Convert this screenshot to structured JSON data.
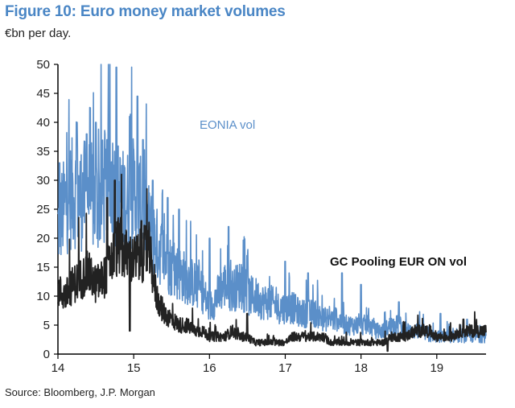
{
  "header": {
    "title": "Figure 10: Euro money market volumes",
    "subtitle": "€bn per day."
  },
  "footer": {
    "source": "Source: Bloomberg, J.P. Morgan"
  },
  "chart_data": {
    "type": "line",
    "title": "Figure 10: Euro money market volumes",
    "ylabel": "€bn per day.",
    "xlabel": "",
    "xlim": [
      14.0,
      19.65
    ],
    "ylim": [
      0,
      50
    ],
    "x_ticks": [
      "14",
      "15",
      "16",
      "17",
      "18",
      "19"
    ],
    "y_ticks": [
      "0",
      "5",
      "10",
      "15",
      "20",
      "25",
      "30",
      "35",
      "40",
      "45",
      "50"
    ],
    "annotations": [
      {
        "series": "EONIA vol",
        "text": "EONIA vol"
      },
      {
        "series": "GC Pooling EUR ON vol",
        "text": "GC Pooling EUR ON vol"
      }
    ],
    "series": [
      {
        "name": "EONIA vol",
        "color": "#5b8fc9",
        "x": [
          14.0,
          14.1,
          14.2,
          14.3,
          14.4,
          14.5,
          14.6,
          14.7,
          14.8,
          14.9,
          15.0,
          15.1,
          15.2,
          15.3,
          15.4,
          15.5,
          15.6,
          15.7,
          15.8,
          15.9,
          16.0,
          16.1,
          16.2,
          16.3,
          16.4,
          16.5,
          16.6,
          16.7,
          16.8,
          16.9,
          17.0,
          17.1,
          17.2,
          17.3,
          17.4,
          17.5,
          17.6,
          17.7,
          17.8,
          17.9,
          18.0,
          18.1,
          18.2,
          18.3,
          18.4,
          18.5,
          18.6,
          18.7,
          18.8,
          18.9,
          19.0,
          19.1,
          19.2,
          19.3,
          19.4,
          19.5,
          19.6
        ],
        "values": [
          22,
          26,
          28,
          27,
          28,
          26,
          28,
          30,
          27,
          26,
          28,
          25,
          22,
          19,
          17,
          15,
          14,
          13,
          12,
          11,
          8,
          10,
          12,
          11,
          12,
          10,
          10,
          9,
          9,
          8,
          8,
          8,
          7,
          7,
          7,
          6,
          6,
          6,
          5,
          5,
          5,
          5,
          4,
          4,
          5,
          5,
          4,
          4,
          4,
          3,
          3,
          3,
          3,
          3,
          3,
          3,
          3
        ],
        "peaks": [
          [
            14.02,
            33
          ],
          [
            14.25,
            40
          ],
          [
            14.38,
            38
          ],
          [
            14.5,
            40
          ],
          [
            14.65,
            37
          ],
          [
            14.77,
            49.5
          ],
          [
            14.95,
            41
          ],
          [
            15.05,
            44.5
          ],
          [
            15.12,
            37
          ],
          [
            15.25,
            30
          ],
          [
            15.45,
            27
          ],
          [
            15.6,
            25
          ],
          [
            16.0,
            20
          ],
          [
            16.25,
            22
          ],
          [
            16.5,
            17
          ],
          [
            17.0,
            16
          ],
          [
            17.3,
            14
          ],
          [
            17.75,
            14
          ],
          [
            18.0,
            12
          ],
          [
            18.5,
            9
          ],
          [
            19.05,
            7
          ],
          [
            19.4,
            6
          ]
        ]
      },
      {
        "name": "GC Pooling EUR ON vol",
        "color": "#222222",
        "x": [
          14.0,
          14.1,
          14.2,
          14.3,
          14.4,
          14.5,
          14.6,
          14.7,
          14.8,
          14.9,
          15.0,
          15.1,
          15.2,
          15.3,
          15.4,
          15.5,
          15.6,
          15.7,
          15.8,
          15.9,
          16.0,
          16.1,
          16.2,
          16.3,
          16.4,
          16.5,
          16.6,
          16.7,
          16.8,
          16.9,
          17.0,
          17.1,
          17.2,
          17.3,
          17.4,
          17.5,
          17.6,
          17.7,
          17.8,
          17.9,
          18.0,
          18.1,
          18.2,
          18.3,
          18.4,
          18.5,
          18.6,
          18.7,
          18.8,
          18.9,
          19.0,
          19.1,
          19.2,
          19.3,
          19.4,
          19.5,
          19.6
        ],
        "values": [
          11,
          10,
          12,
          13,
          14,
          12,
          13,
          16,
          19,
          17,
          16,
          17,
          18,
          10,
          7,
          6,
          5,
          5,
          4,
          4,
          3,
          3,
          3,
          4,
          3,
          3,
          2,
          2,
          2,
          2,
          2,
          3,
          3,
          3,
          3,
          3,
          2,
          2,
          2,
          2,
          2,
          2,
          2,
          2,
          3,
          3,
          3,
          4,
          4,
          4,
          3,
          3,
          3,
          4,
          4,
          4,
          4
        ],
        "peaks": [
          [
            14.65,
            27
          ],
          [
            14.75,
            30
          ],
          [
            15.1,
            23
          ],
          [
            14.95,
            4
          ],
          [
            16.5,
            7
          ],
          [
            18.35,
            0.5
          ],
          [
            19.35,
            6
          ]
        ]
      }
    ]
  }
}
